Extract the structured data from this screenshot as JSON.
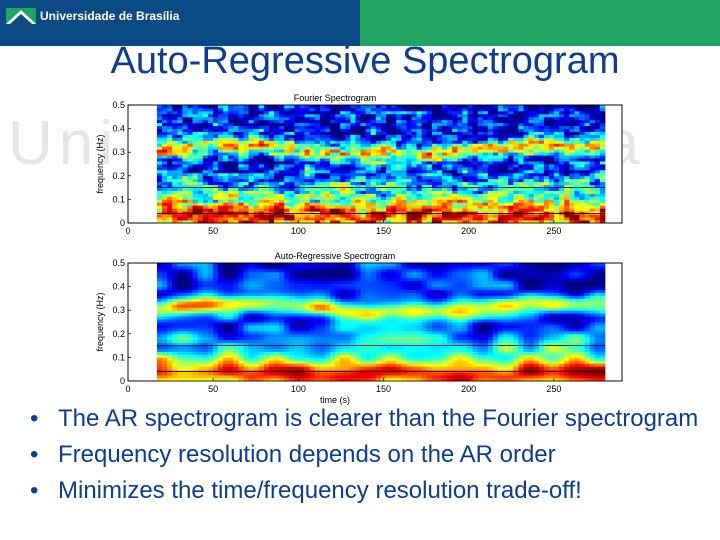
{
  "header": {
    "brand": "Universidade de Brasília",
    "logo_icon": "unb-logo-icon",
    "colors": {
      "blue": "#0c4a86",
      "green": "#1fa463"
    }
  },
  "watermark": {
    "left_text": "Uni",
    "right_text": "sília"
  },
  "slide": {
    "title": "Auto-Regressive Spectrogram",
    "bullets": [
      "The AR spectrogram is clearer than the Fourier spectrogram",
      "Frequency resolution depends on the AR order",
      "Minimizes the time/frequency resolution trade-off!"
    ]
  },
  "chart_data": [
    {
      "type": "heatmap",
      "title": "Fourier Spectrogram",
      "xlabel": "",
      "ylabel": "frequency (Hz)",
      "xlim": [
        0,
        290
      ],
      "ylim": [
        0,
        0.5
      ],
      "xticks": [
        0,
        50,
        100,
        150,
        200,
        250
      ],
      "yticks": [
        0,
        0.1,
        0.2,
        0.3,
        0.4,
        0.5
      ],
      "data_xrange": [
        17,
        280
      ],
      "reference_lines_hz": [
        0.04,
        0.15
      ],
      "texture": "fine"
    },
    {
      "type": "heatmap",
      "title": "Auto-Regressive Spectrogram",
      "xlabel": "time (s)",
      "ylabel": "frequency (Hz)",
      "xlim": [
        0,
        290
      ],
      "ylim": [
        0,
        0.5
      ],
      "xticks": [
        0,
        50,
        100,
        150,
        200,
        250
      ],
      "yticks": [
        0,
        0.1,
        0.2,
        0.3,
        0.4,
        0.5
      ],
      "data_xrange": [
        17,
        280
      ],
      "reference_lines_hz": [
        0.04,
        0.15
      ],
      "texture": "smooth"
    }
  ]
}
